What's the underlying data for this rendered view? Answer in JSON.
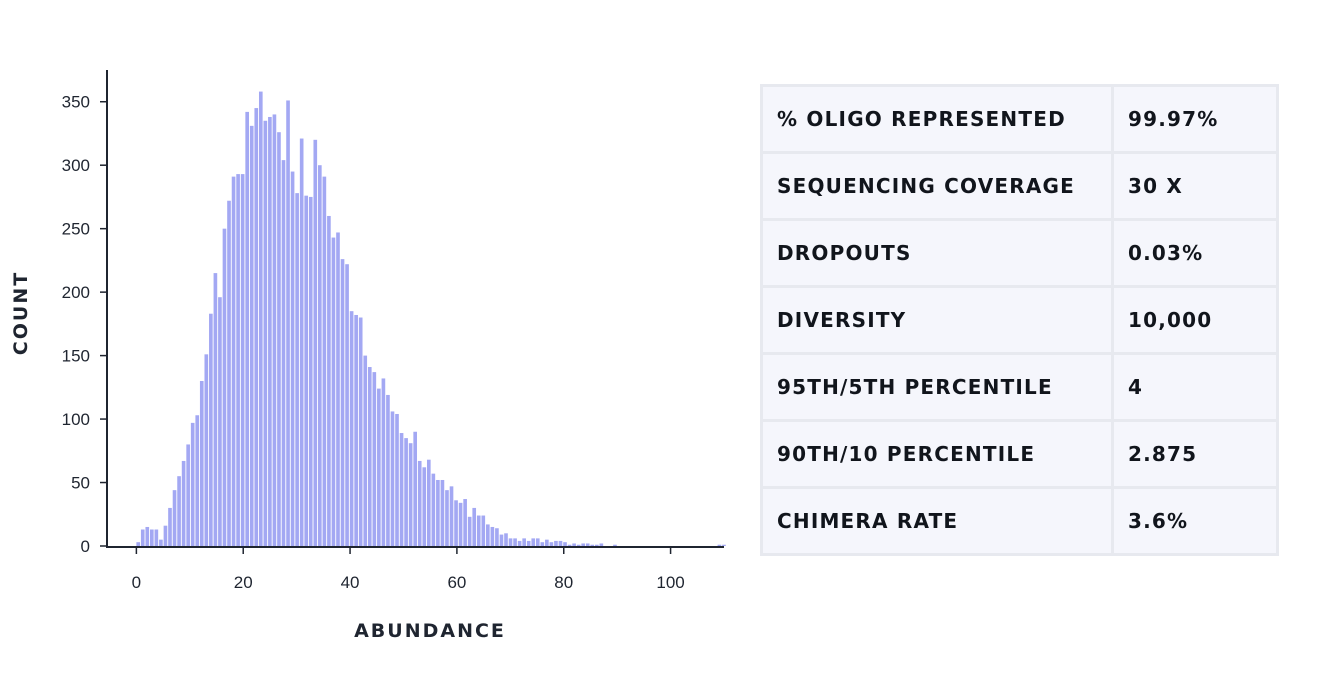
{
  "chart_data": {
    "type": "bar",
    "xlabel": "ABUNDANCE",
    "ylabel": "COUNT",
    "xlim": [
      -5.5,
      110
    ],
    "ylim": [
      0,
      375
    ],
    "xticks": [
      0,
      20,
      40,
      60,
      80,
      100
    ],
    "yticks": [
      0,
      50,
      100,
      150,
      200,
      250,
      300,
      350
    ],
    "bin_width": 0.85,
    "bins_start": 0,
    "values": [
      3,
      13,
      15,
      13,
      13,
      5,
      16,
      30,
      44,
      55,
      67,
      80,
      97,
      103,
      130,
      151,
      183,
      215,
      196,
      250,
      272,
      291,
      293,
      293,
      342,
      331,
      345,
      358,
      335,
      338,
      340,
      326,
      304,
      351,
      295,
      278,
      321,
      276,
      275,
      320,
      300,
      291,
      260,
      243,
      247,
      226,
      222,
      185,
      182,
      180,
      150,
      141,
      137,
      124,
      132,
      119,
      106,
      104,
      89,
      85,
      81,
      90,
      67,
      62,
      68,
      57,
      52,
      52,
      44,
      47,
      36,
      34,
      37,
      23,
      30,
      24,
      24,
      17,
      15,
      14,
      9,
      10,
      6,
      6,
      4,
      6,
      4,
      6,
      6,
      3,
      5,
      3,
      4,
      4,
      3,
      1,
      2,
      1,
      2,
      2,
      1,
      1,
      2,
      0,
      0,
      1,
      0,
      0,
      0,
      0,
      0,
      0,
      0,
      0,
      0,
      0,
      0,
      0,
      0,
      0,
      0,
      0,
      0,
      0,
      0,
      0,
      0,
      0,
      1,
      1
    ],
    "bar_color": "#a3a8f3",
    "grid": false
  },
  "table": {
    "rows": [
      {
        "label": "% OLIGO REPRESENTED",
        "value": "99.97%"
      },
      {
        "label": "SEQUENCING COVERAGE",
        "value": "30 X"
      },
      {
        "label": "DROPOUTS",
        "value": "0.03%"
      },
      {
        "label": "DIVERSITY",
        "value": "10,000"
      },
      {
        "label": "95TH/5TH PERCENTILE",
        "value": "4"
      },
      {
        "label": "90TH/10 PERCENTILE",
        "value": "2.875"
      },
      {
        "label": "CHIMERA RATE",
        "value": "3.6%"
      }
    ]
  }
}
